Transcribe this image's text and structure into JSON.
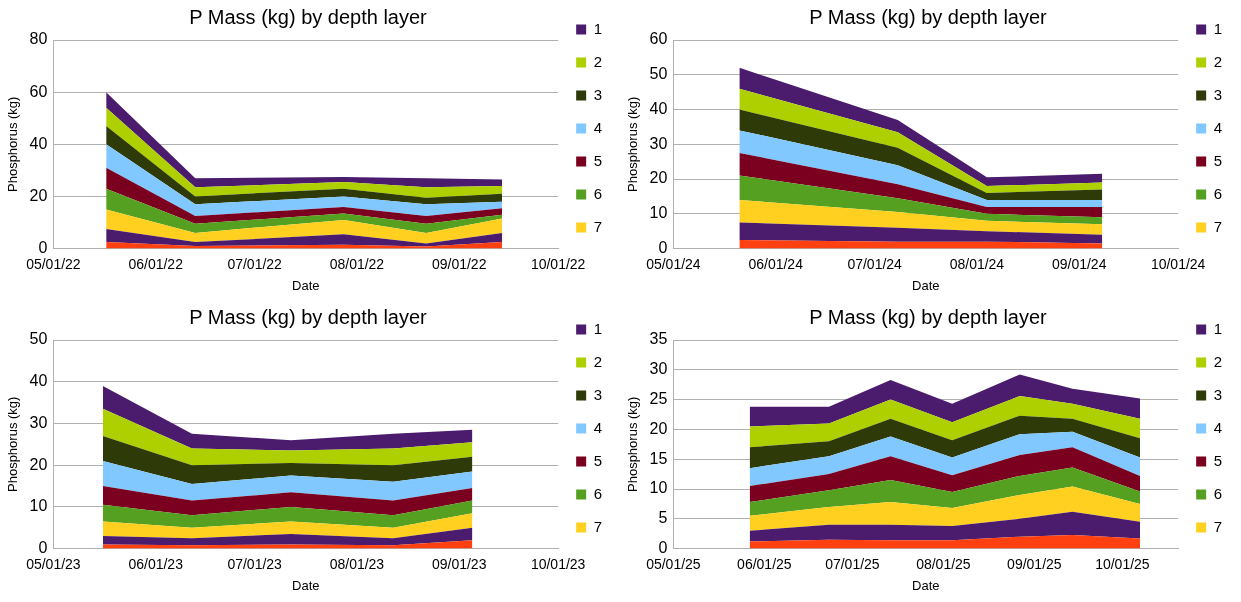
{
  "chart_data": [
    {
      "type": "area",
      "stacked": true,
      "title": "P Mass (kg) by depth layer",
      "xlabel": "Date",
      "ylabel": "Phosphorus (kg)",
      "grid": "y",
      "legend": "right",
      "x": [
        "2022-05-17",
        "2022-06-13",
        "2022-07-28",
        "2022-08-22",
        "2022-09-14"
      ],
      "xlim": [
        "2022-05-01",
        "2022-10-01"
      ],
      "xticks": [
        {
          "value": "2022-05-01",
          "label": "05/01/22"
        },
        {
          "value": "2022-06-01",
          "label": "06/01/22"
        },
        {
          "value": "2022-07-01",
          "label": "07/01/22"
        },
        {
          "value": "2022-08-01",
          "label": "08/01/22"
        },
        {
          "value": "2022-09-01",
          "label": "09/01/22"
        },
        {
          "value": "2022-10-01",
          "label": "10/01/22"
        }
      ],
      "ylim": [
        0,
        80
      ],
      "yticks": [
        0,
        20,
        40,
        60,
        80
      ],
      "series": [
        {
          "color": "#ff4010",
          "values": [
            2.5,
            1,
            1.5,
            0.8,
            2.5
          ]
        },
        {
          "color": "#4b1c6e",
          "values": [
            5,
            1.5,
            4,
            1.2,
            3.5
          ]
        },
        {
          "name": "7",
          "color": "#ffd020",
          "values": [
            7.5,
            3.5,
            5.5,
            4,
            5.5
          ]
        },
        {
          "name": "6",
          "color": "#55a020",
          "values": [
            8,
            3.5,
            2.5,
            3.5,
            1.5
          ]
        },
        {
          "name": "5",
          "color": "#7b0020",
          "values": [
            8,
            3,
            2.5,
            3,
            2.5
          ]
        },
        {
          "name": "4",
          "color": "#80c8ff",
          "values": [
            9,
            4.5,
            4,
            4.5,
            2.5
          ]
        },
        {
          "name": "3",
          "color": "#2e3b08",
          "values": [
            7,
            3,
            3,
            2.5,
            3
          ]
        },
        {
          "name": "2",
          "color": "#afd000",
          "values": [
            7,
            3.5,
            2.5,
            4,
            3
          ]
        },
        {
          "name": "1",
          "color": "#4b1c6e",
          "values": [
            6,
            3.5,
            2,
            3.5,
            2.5
          ]
        }
      ]
    },
    {
      "type": "area",
      "stacked": true,
      "title": "P Mass (kg) by depth layer",
      "xlabel": "Date",
      "ylabel": "Phosphorus (kg)",
      "grid": "y",
      "legend": "right",
      "x": [
        "2024-05-21",
        "2024-07-08",
        "2024-08-04",
        "2024-09-08"
      ],
      "xlim": [
        "2024-05-01",
        "2024-10-01"
      ],
      "xticks": [
        {
          "value": "2024-05-01",
          "label": "05/01/24"
        },
        {
          "value": "2024-06-01",
          "label": "06/01/24"
        },
        {
          "value": "2024-07-01",
          "label": "07/01/24"
        },
        {
          "value": "2024-08-01",
          "label": "08/01/24"
        },
        {
          "value": "2024-09-01",
          "label": "09/01/24"
        },
        {
          "value": "2024-10-01",
          "label": "10/01/24"
        }
      ],
      "ylim": [
        0,
        60
      ],
      "yticks": [
        0,
        10,
        20,
        30,
        40,
        50,
        60
      ],
      "series": [
        {
          "color": "#ff4010",
          "values": [
            2.5,
            2,
            2,
            1.5
          ]
        },
        {
          "color": "#4b1c6e",
          "values": [
            5,
            4,
            3,
            2.5
          ]
        },
        {
          "name": "7",
          "color": "#ffd020",
          "values": [
            6.5,
            4.5,
            3,
            3
          ]
        },
        {
          "name": "6",
          "color": "#55a020",
          "values": [
            7,
            4,
            2,
            2
          ]
        },
        {
          "name": "5",
          "color": "#7b0020",
          "values": [
            6.5,
            4,
            2,
            3
          ]
        },
        {
          "name": "4",
          "color": "#80c8ff",
          "values": [
            6.5,
            5.5,
            2,
            2
          ]
        },
        {
          "name": "3",
          "color": "#2e3b08",
          "values": [
            6,
            5,
            2,
            3
          ]
        },
        {
          "name": "2",
          "color": "#afd000",
          "values": [
            6,
            4.5,
            2,
            2
          ]
        },
        {
          "name": "1",
          "color": "#4b1c6e",
          "values": [
            6,
            3.5,
            2.5,
            2.5
          ]
        }
      ]
    },
    {
      "type": "area",
      "stacked": true,
      "title": "P Mass (kg) by depth layer",
      "xlabel": "Date",
      "ylabel": "Phosphorus (kg)",
      "grid": "y",
      "legend": "right",
      "x": [
        "2023-05-16",
        "2023-06-12",
        "2023-07-12",
        "2023-08-12",
        "2023-09-05"
      ],
      "xlim": [
        "2023-05-01",
        "2023-10-01"
      ],
      "xticks": [
        {
          "value": "2023-05-01",
          "label": "05/01/23"
        },
        {
          "value": "2023-06-01",
          "label": "06/01/23"
        },
        {
          "value": "2023-07-01",
          "label": "07/01/23"
        },
        {
          "value": "2023-08-01",
          "label": "08/01/23"
        },
        {
          "value": "2023-09-01",
          "label": "09/01/23"
        },
        {
          "value": "2023-10-01",
          "label": "10/01/23"
        }
      ],
      "ylim": [
        0,
        50
      ],
      "yticks": [
        0,
        10,
        20,
        30,
        40,
        50
      ],
      "series": [
        {
          "color": "#ff4010",
          "values": [
            1,
            0.8,
            1,
            0.8,
            2
          ]
        },
        {
          "color": "#4b1c6e",
          "values": [
            2,
            1.7,
            2.5,
            1.7,
            3
          ]
        },
        {
          "name": "7",
          "color": "#ffd020",
          "values": [
            3.5,
            2.5,
            3,
            2.5,
            3.5
          ]
        },
        {
          "name": "6",
          "color": "#55a020",
          "values": [
            4,
            3,
            3.5,
            3,
            3
          ]
        },
        {
          "name": "5",
          "color": "#7b0020",
          "values": [
            4.5,
            3.5,
            3.5,
            3.5,
            3
          ]
        },
        {
          "name": "4",
          "color": "#80c8ff",
          "values": [
            6,
            4,
            4,
            4.5,
            4
          ]
        },
        {
          "name": "3",
          "color": "#2e3b08",
          "values": [
            6,
            4.5,
            3,
            4,
            3.5
          ]
        },
        {
          "name": "2",
          "color": "#afd000",
          "values": [
            6.5,
            4,
            3,
            4,
            3.5
          ]
        },
        {
          "name": "1",
          "color": "#4b1c6e",
          "values": [
            5.5,
            3.5,
            2.5,
            3.5,
            3
          ]
        }
      ]
    },
    {
      "type": "area",
      "stacked": true,
      "title": "P Mass (kg) by depth layer",
      "xlabel": "Date",
      "ylabel": "Phosphorus (kg)",
      "grid": "y",
      "legend": "right",
      "x": [
        "2025-05-27",
        "2025-06-23",
        "2025-07-14",
        "2025-08-04",
        "2025-08-27",
        "2025-09-14",
        "2025-10-07"
      ],
      "xlim": [
        "2025-05-01",
        "2025-10-20"
      ],
      "xticks": [
        {
          "value": "2025-05-01",
          "label": "05/01/25"
        },
        {
          "value": "2025-06-01",
          "label": "06/01/25"
        },
        {
          "value": "2025-07-01",
          "label": "07/01/25"
        },
        {
          "value": "2025-08-01",
          "label": "08/01/25"
        },
        {
          "value": "2025-09-01",
          "label": "09/01/25"
        },
        {
          "value": "2025-10-01",
          "label": "10/01/25"
        }
      ],
      "ylim": [
        0,
        35
      ],
      "yticks": [
        0,
        5,
        10,
        15,
        20,
        25,
        30,
        35
      ],
      "series": [
        {
          "color": "#ff4010",
          "values": [
            1.2,
            1.5,
            1.4,
            1.4,
            2,
            2.3,
            1.7
          ]
        },
        {
          "color": "#4b1c6e",
          "values": [
            1.8,
            2.5,
            2.6,
            2.4,
            3,
            3.9,
            2.8
          ]
        },
        {
          "name": "7",
          "color": "#ffd020",
          "values": [
            2.5,
            3,
            3.8,
            3,
            4,
            4.2,
            3
          ]
        },
        {
          "name": "6",
          "color": "#55a020",
          "values": [
            2.3,
            2.8,
            3.7,
            2.7,
            3.2,
            3.2,
            2.1
          ]
        },
        {
          "name": "5",
          "color": "#7b0020",
          "values": [
            2.7,
            2.7,
            4,
            2.8,
            3.5,
            3.4,
            2.6
          ]
        },
        {
          "name": "4",
          "color": "#80c8ff",
          "values": [
            3,
            3,
            3.3,
            3,
            3.5,
            2.6,
            3.1
          ]
        },
        {
          "name": "3",
          "color": "#2e3b08",
          "values": [
            3.5,
            2.5,
            3,
            2.9,
            3.1,
            2.2,
            3.2
          ]
        },
        {
          "name": "2",
          "color": "#afd000",
          "values": [
            3.5,
            3,
            3.2,
            3,
            3.3,
            2.5,
            3.3
          ]
        },
        {
          "name": "1",
          "color": "#4b1c6e",
          "values": [
            3.3,
            2.8,
            3.3,
            3.1,
            3.6,
            2.5,
            3.4
          ]
        }
      ]
    }
  ]
}
